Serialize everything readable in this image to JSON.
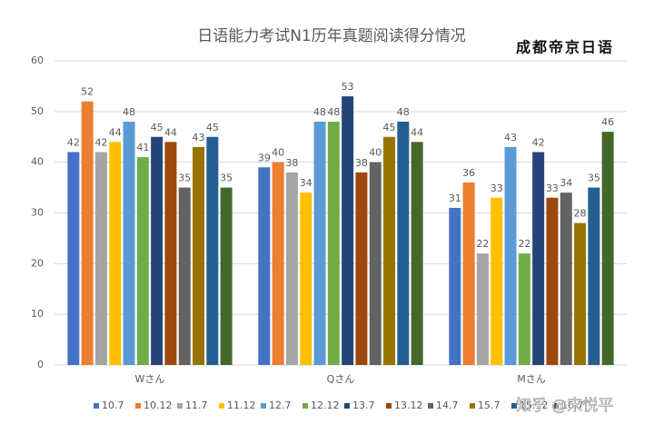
{
  "chart_data": {
    "type": "bar",
    "title": "日语能力考试N1历年真题阅读得分情况",
    "logo": "成都帝京日语",
    "watermark": "知乎 @宋悦平",
    "categories": [
      "Wさん",
      "Qさん",
      "Mさん"
    ],
    "series": [
      {
        "name": "10.7",
        "color": "#4472c4",
        "values": [
          42,
          39,
          31
        ]
      },
      {
        "name": "10.12",
        "color": "#ed7d31",
        "values": [
          52,
          40,
          36
        ]
      },
      {
        "name": "11.7",
        "color": "#a5a5a5",
        "values": [
          42,
          38,
          22
        ]
      },
      {
        "name": "11.12",
        "color": "#ffc000",
        "values": [
          44,
          34,
          33
        ]
      },
      {
        "name": "12.7",
        "color": "#5b9bd5",
        "values": [
          48,
          48,
          43
        ]
      },
      {
        "name": "12.12",
        "color": "#70ad47",
        "values": [
          41,
          48,
          22
        ]
      },
      {
        "name": "13.7",
        "color": "#264478",
        "values": [
          45,
          53,
          42
        ]
      },
      {
        "name": "13.12",
        "color": "#9e480e",
        "values": [
          44,
          38,
          33
        ]
      },
      {
        "name": "14.7",
        "color": "#636363",
        "values": [
          35,
          40,
          34
        ]
      },
      {
        "name": "15.7",
        "color": "#997300",
        "values": [
          43,
          45,
          28
        ]
      },
      {
        "name": "15.12",
        "color": "#255e91",
        "values": [
          45,
          48,
          35
        ]
      },
      {
        "name": "16.7",
        "color": "#43682b",
        "values": [
          35,
          44,
          46
        ]
      }
    ],
    "ylim": [
      0,
      60
    ],
    "yticks": [
      0,
      10,
      20,
      30,
      40,
      50,
      60
    ],
    "grid": true
  }
}
